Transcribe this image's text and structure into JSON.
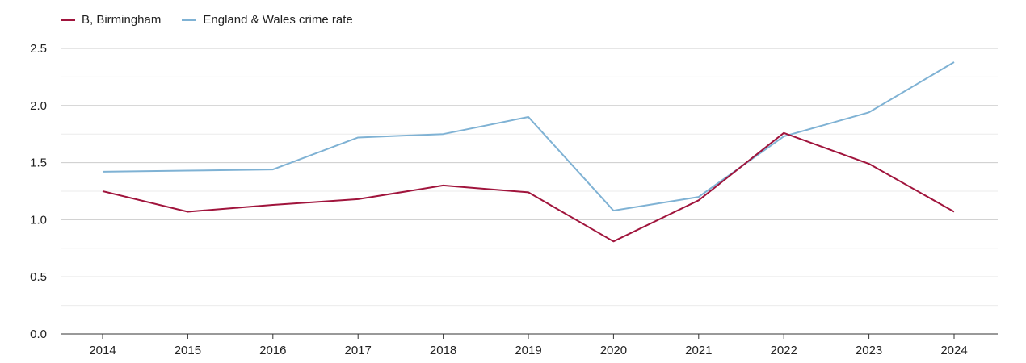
{
  "chart_data": {
    "type": "line",
    "title": "",
    "xlabel": "",
    "ylabel": "",
    "categories": [
      "2014",
      "2015",
      "2016",
      "2017",
      "2018",
      "2019",
      "2020",
      "2021",
      "2022",
      "2023",
      "2024"
    ],
    "ylim": [
      0,
      2.5
    ],
    "yticks": [
      "0.0",
      "0.5",
      "1.0",
      "1.5",
      "2.0",
      "2.5"
    ],
    "grid": true,
    "legend_position": "top-left",
    "series": [
      {
        "name": "B, Birmingham",
        "color": "#a0143c",
        "values": [
          1.25,
          1.07,
          1.13,
          1.18,
          1.3,
          1.24,
          0.81,
          1.17,
          1.76,
          1.49,
          1.07
        ]
      },
      {
        "name": "England & Wales crime rate",
        "color": "#7fb2d4",
        "values": [
          1.42,
          1.43,
          1.44,
          1.72,
          1.75,
          1.9,
          1.08,
          1.2,
          1.73,
          1.94,
          2.38
        ]
      }
    ]
  }
}
